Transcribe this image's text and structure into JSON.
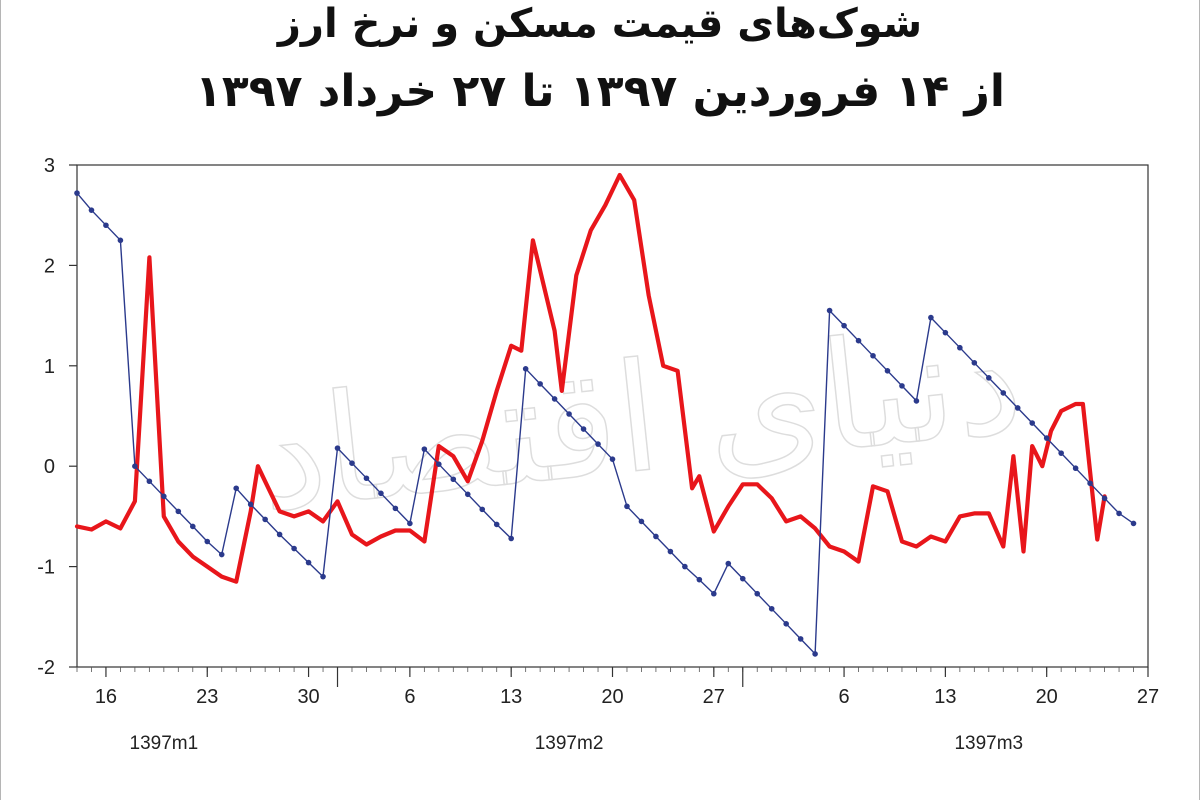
{
  "title_line1": "شوک‌های قیمت مسکن و نرخ ارز",
  "title_line2": "از ۱۴ فروردین ۱۳۹۷ تا ۲۷ خرداد ۱۳۹۷",
  "watermark": "دنیای اقتصاد",
  "chart_data": {
    "type": "line",
    "title": "شوک‌های قیمت مسکن و نرخ ارز از ۱۴ فروردین ۱۳۹۷ تا ۲۷ خرداد ۱۳۹۷",
    "ylim": [
      -2,
      3
    ],
    "yticks": [
      -2,
      -1,
      0,
      1,
      2,
      3
    ],
    "xlim": [
      14,
      88
    ],
    "xticks": [
      {
        "x": 16,
        "label": "16"
      },
      {
        "x": 23,
        "label": "23"
      },
      {
        "x": 30,
        "label": "30"
      },
      {
        "x": 37,
        "label": "6"
      },
      {
        "x": 44,
        "label": "13"
      },
      {
        "x": 51,
        "label": "20"
      },
      {
        "x": 58,
        "label": "27"
      },
      {
        "x": 67,
        "label": "6"
      },
      {
        "x": 74,
        "label": "13"
      },
      {
        "x": 81,
        "label": "20"
      },
      {
        "x": 88,
        "label": "27"
      }
    ],
    "month_labels": [
      {
        "x": 20,
        "label": "1397m1"
      },
      {
        "x": 48,
        "label": "1397m2"
      },
      {
        "x": 77,
        "label": "1397m3"
      }
    ],
    "grid": false,
    "series": [
      {
        "color": "#e8161b",
        "style": "thick-line",
        "points": [
          [
            14,
            -0.6
          ],
          [
            15,
            -0.63
          ],
          [
            16,
            -0.55
          ],
          [
            17,
            -0.62
          ],
          [
            18,
            -0.35
          ],
          [
            19,
            2.08
          ],
          [
            20,
            -0.5
          ],
          [
            21,
            -0.75
          ],
          [
            22,
            -0.9
          ],
          [
            23,
            -1.0
          ],
          [
            24,
            -1.1
          ],
          [
            25,
            -1.15
          ],
          [
            26,
            -0.45
          ],
          [
            26.5,
            0.0
          ],
          [
            27,
            -0.15
          ],
          [
            28,
            -0.45
          ],
          [
            29,
            -0.5
          ],
          [
            30,
            -0.45
          ],
          [
            31,
            -0.55
          ],
          [
            32,
            -0.35
          ],
          [
            33,
            -0.68
          ],
          [
            34,
            -0.78
          ],
          [
            35,
            -0.7
          ],
          [
            36,
            -0.64
          ],
          [
            37,
            -0.64
          ],
          [
            38,
            -0.75
          ],
          [
            39,
            0.2
          ],
          [
            40,
            0.1
          ],
          [
            41,
            -0.15
          ],
          [
            42,
            0.25
          ],
          [
            43,
            0.75
          ],
          [
            44,
            1.2
          ],
          [
            44.7,
            1.15
          ],
          [
            45.5,
            2.25
          ],
          [
            47,
            1.35
          ],
          [
            47.5,
            0.75
          ],
          [
            48.5,
            1.9
          ],
          [
            49.5,
            2.35
          ],
          [
            50.5,
            2.6
          ],
          [
            51.5,
            2.9
          ],
          [
            52.5,
            2.65
          ],
          [
            53.5,
            1.7
          ],
          [
            54.5,
            1.0
          ],
          [
            55.5,
            0.95
          ],
          [
            56.5,
            -0.22
          ],
          [
            57,
            -0.1
          ],
          [
            58,
            -0.65
          ],
          [
            59,
            -0.4
          ],
          [
            60,
            -0.18
          ],
          [
            61,
            -0.18
          ],
          [
            62,
            -0.32
          ],
          [
            63,
            -0.55
          ],
          [
            64,
            -0.5
          ],
          [
            65,
            -0.62
          ],
          [
            66,
            -0.8
          ],
          [
            67,
            -0.85
          ],
          [
            68,
            -0.95
          ],
          [
            69,
            -0.2
          ],
          [
            70,
            -0.25
          ],
          [
            71,
            -0.75
          ],
          [
            72,
            -0.8
          ],
          [
            73,
            -0.7
          ],
          [
            74,
            -0.75
          ],
          [
            75,
            -0.5
          ],
          [
            76,
            -0.47
          ],
          [
            77,
            -0.47
          ],
          [
            78,
            -0.8
          ],
          [
            78.7,
            0.1
          ],
          [
            79.4,
            -0.85
          ],
          [
            80,
            0.2
          ],
          [
            80.7,
            0.0
          ],
          [
            81.3,
            0.35
          ],
          [
            82,
            0.55
          ],
          [
            83,
            0.62
          ],
          [
            83.5,
            0.62
          ],
          [
            84.5,
            -0.73
          ],
          [
            85,
            -0.3
          ]
        ]
      },
      {
        "color": "#2b3a8c",
        "style": "line-markers",
        "points": [
          [
            14,
            2.72
          ],
          [
            15,
            2.55
          ],
          [
            16,
            2.4
          ],
          [
            17,
            2.25
          ],
          [
            18,
            0.0
          ],
          [
            19,
            -0.15
          ],
          [
            20,
            -0.3
          ],
          [
            21,
            -0.45
          ],
          [
            22,
            -0.6
          ],
          [
            23,
            -0.75
          ],
          [
            24,
            -0.88
          ],
          [
            25,
            -0.22
          ],
          [
            26,
            -0.38
          ],
          [
            27,
            -0.53
          ],
          [
            28,
            -0.68
          ],
          [
            29,
            -0.82
          ],
          [
            30,
            -0.96
          ],
          [
            31,
            -1.1
          ],
          [
            32,
            0.18
          ],
          [
            33,
            0.03
          ],
          [
            34,
            -0.12
          ],
          [
            35,
            -0.27
          ],
          [
            36,
            -0.42
          ],
          [
            37,
            -0.57
          ],
          [
            38,
            0.17
          ],
          [
            39,
            0.02
          ],
          [
            40,
            -0.13
          ],
          [
            41,
            -0.28
          ],
          [
            42,
            -0.43
          ],
          [
            43,
            -0.58
          ],
          [
            44,
            -0.72
          ],
          [
            45,
            0.97
          ],
          [
            46,
            0.82
          ],
          [
            47,
            0.67
          ],
          [
            48,
            0.52
          ],
          [
            49,
            0.37
          ],
          [
            50,
            0.22
          ],
          [
            51,
            0.07
          ],
          [
            52,
            -0.4
          ],
          [
            53,
            -0.55
          ],
          [
            54,
            -0.7
          ],
          [
            55,
            -0.85
          ],
          [
            56,
            -1.0
          ],
          [
            57,
            -1.13
          ],
          [
            58,
            -1.27
          ],
          [
            59,
            -0.97
          ],
          [
            60,
            -1.12
          ],
          [
            61,
            -1.27
          ],
          [
            62,
            -1.42
          ],
          [
            63,
            -1.57
          ],
          [
            64,
            -1.72
          ],
          [
            65,
            -1.87
          ],
          [
            66,
            1.55
          ],
          [
            67,
            1.4
          ],
          [
            68,
            1.25
          ],
          [
            69,
            1.1
          ],
          [
            70,
            0.95
          ],
          [
            71,
            0.8
          ],
          [
            72,
            0.65
          ],
          [
            73,
            1.48
          ],
          [
            74,
            1.33
          ],
          [
            75,
            1.18
          ],
          [
            76,
            1.03
          ],
          [
            77,
            0.88
          ],
          [
            78,
            0.73
          ],
          [
            79,
            0.58
          ],
          [
            80,
            0.43
          ],
          [
            81,
            0.28
          ],
          [
            82,
            0.13
          ],
          [
            83,
            -0.02
          ],
          [
            84,
            -0.17
          ],
          [
            85,
            -0.32
          ],
          [
            86,
            -0.47
          ],
          [
            87,
            -0.57
          ]
        ]
      }
    ]
  }
}
